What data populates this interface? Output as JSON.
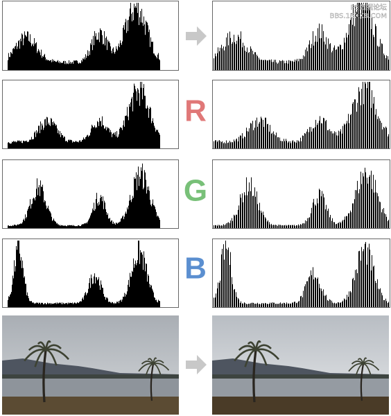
{
  "labels": {
    "red": "R",
    "green": "G",
    "blue": "B"
  },
  "watermark": [
    "PS数据论坛",
    "BBS.16XX8.COM"
  ]
}
